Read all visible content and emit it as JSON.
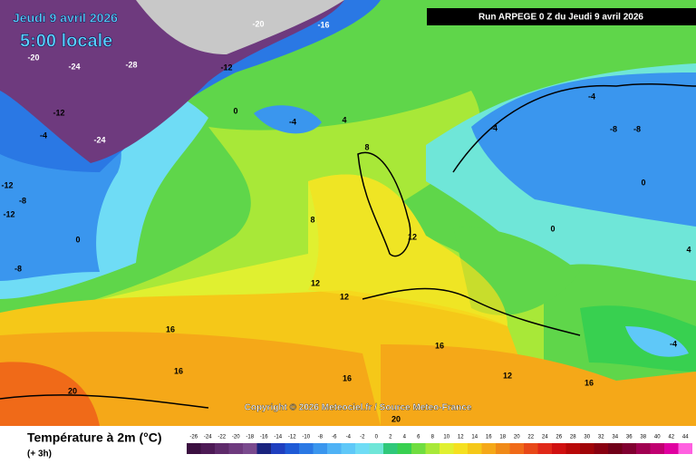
{
  "header": {
    "run": "Run ARPEGE 0 Z du Jeudi 9 avril 2026",
    "date": "Jeudi 9 avril 2026",
    "time": "5:00 locale"
  },
  "copyright": "Copyright © 2026 Meteociel.fr / Source Meteo-France",
  "footer": {
    "title": "Température à 2m (°C)",
    "step": "(+ 3h)"
  },
  "legend": {
    "values": [
      -26,
      -24,
      -22,
      -20,
      -18,
      -16,
      -14,
      -12,
      -10,
      -8,
      -6,
      -4,
      -2,
      0,
      2,
      4,
      6,
      8,
      10,
      12,
      14,
      16,
      18,
      20,
      22,
      24,
      26,
      28,
      30,
      32,
      34,
      36,
      38,
      40,
      42,
      44
    ],
    "colors": [
      "#3b0f40",
      "#4d1a55",
      "#5e2a6a",
      "#6e3a7e",
      "#7a4a8e",
      "#1a237e",
      "#1f3fbf",
      "#1e5ad6",
      "#2a78e4",
      "#3a96ee",
      "#4fb2f5",
      "#5fc8f8",
      "#6fdcf5",
      "#6fe6d8",
      "#2fc87a",
      "#38d050",
      "#70dd40",
      "#a8e838",
      "#e0f030",
      "#f5e020",
      "#f5c818",
      "#f5a818",
      "#f08a18",
      "#f06a18",
      "#e84818",
      "#e02818",
      "#d01010",
      "#b80808",
      "#a00408",
      "#880010",
      "#700018",
      "#800030",
      "#a00050",
      "#c00070",
      "#e000a0",
      "#ff60e0"
    ]
  },
  "contour_labels": [
    -20,
    -24,
    -28,
    -24,
    -12,
    -4,
    -12,
    -8,
    -12,
    -8,
    0,
    -16,
    -20,
    -12,
    0,
    4,
    -4,
    8,
    8,
    12,
    12,
    12,
    16,
    16,
    20,
    16,
    -4,
    -8,
    0,
    0,
    -4,
    4,
    12,
    16,
    20,
    -4,
    -8,
    16
  ]
}
